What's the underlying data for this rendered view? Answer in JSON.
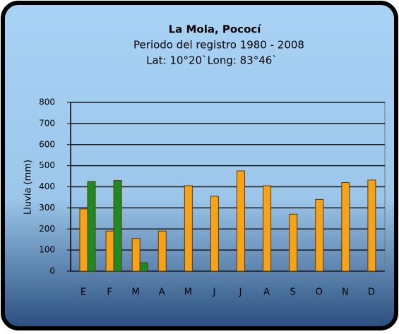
{
  "chart_data": {
    "type": "bar",
    "title": "La Mola, Pococí",
    "subtitle": [
      "Periodo del registro  1980 - 2008",
      "Lat: 10°20`Long: 83°46`"
    ],
    "y_label": "Lluvia (mm)",
    "categories": [
      "E",
      "F",
      "M",
      "A",
      "M",
      "J",
      "J",
      "A",
      "S",
      "O",
      "N",
      "D"
    ],
    "series": [
      {
        "color": "#f7a21b",
        "values": [
          295,
          190,
          155,
          190,
          405,
          355,
          475,
          405,
          270,
          340,
          420,
          432
        ]
      },
      {
        "color": "#1f8a24",
        "values": [
          425,
          430,
          40,
          null,
          null,
          null,
          null,
          null,
          null,
          null,
          null,
          null
        ]
      }
    ],
    "ylim": [
      0,
      800
    ],
    "yticks": [
      0,
      100,
      200,
      300,
      400,
      500,
      600,
      700,
      800
    ],
    "grid": true
  }
}
